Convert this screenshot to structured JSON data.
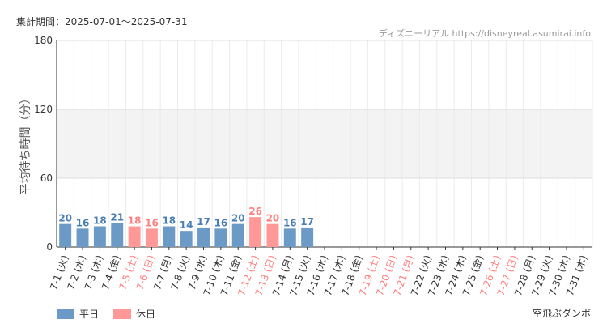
{
  "header": {
    "period": "集計期間：2025-07-01～2025-07-31",
    "source": "ディズニーリアル https://disneyreal.asumirai.info"
  },
  "footer": {
    "attraction": "空飛ぶダンボ"
  },
  "colors": {
    "weekday": "#6b9ac7",
    "holiday": "#ff9896",
    "weekday_text": "#4a7fb5",
    "holiday_text": "#ff7f7f"
  },
  "chart_data": {
    "type": "bar",
    "ylabel": "平均待ち時間（分）",
    "ylim": [
      0,
      180
    ],
    "yticks": [
      0,
      60,
      120,
      180
    ],
    "categories": [
      "7-1 (火)",
      "7-2 (水)",
      "7-3 (木)",
      "7-4 (金)",
      "7-5 (土)",
      "7-6 (日)",
      "7-7 (月)",
      "7-8 (火)",
      "7-9 (水)",
      "7-10 (木)",
      "7-11 (金)",
      "7-12 (土)",
      "7-13 (日)",
      "7-14 (月)",
      "7-15 (火)",
      "7-16 (水)",
      "7-17 (木)",
      "7-18 (金)",
      "7-19 (土)",
      "7-20 (日)",
      "7-21 (月)",
      "7-22 (火)",
      "7-23 (水)",
      "7-24 (木)",
      "7-25 (金)",
      "7-26 (土)",
      "7-27 (日)",
      "7-28 (月)",
      "7-29 (火)",
      "7-30 (水)",
      "7-31 (木)"
    ],
    "values": [
      20,
      16,
      18,
      21,
      18,
      16,
      18,
      14,
      17,
      16,
      20,
      26,
      20,
      16,
      17,
      null,
      null,
      null,
      null,
      null,
      null,
      null,
      null,
      null,
      null,
      null,
      null,
      null,
      null,
      null,
      null
    ],
    "holiday": [
      false,
      false,
      false,
      false,
      true,
      true,
      false,
      false,
      false,
      false,
      false,
      true,
      true,
      false,
      false,
      false,
      false,
      false,
      true,
      true,
      true,
      false,
      false,
      false,
      false,
      true,
      true,
      false,
      false,
      false,
      false
    ],
    "legend": [
      {
        "label": "平日",
        "color": "#6b9ac7"
      },
      {
        "label": "休日",
        "color": "#ff9896"
      }
    ]
  }
}
